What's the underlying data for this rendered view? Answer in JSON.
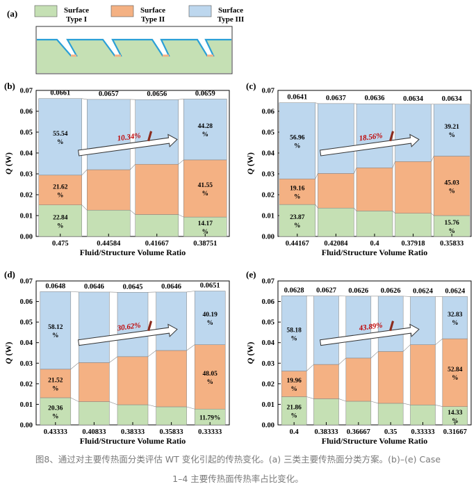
{
  "figure": {
    "legend": {
      "panel_letter": "(a)",
      "items": [
        {
          "label": "Surface\nType I",
          "color": "#c5e0b4"
        },
        {
          "label": "Surface\nType II",
          "color": "#f4b183"
        },
        {
          "label": "Surface\nType III",
          "color": "#bdd7ee"
        }
      ]
    },
    "caption_line1": "图8、通过对主要传热面分类评估 WT 变化引起的传热变化。(a) 三类主要传热面分类方案。(b)–(e) Case",
    "caption_line2": "1–4 主要传热面传热率占比变化。"
  },
  "colors": {
    "type1": "#c5e0b4",
    "type2": "#f4b183",
    "type3": "#bdd7ee",
    "fluid_channel": "#2a9fd6",
    "solid": "#c5e0b4",
    "arrow_label": "#c00000",
    "arrow_wedge": "#8b2b1d"
  },
  "chart_data": [
    {
      "panel": "(b)",
      "type": "bar",
      "stacked": true,
      "xlabel": "Fluid/Structure Volume Ratio",
      "ylabel": "Q (W)",
      "ylim": [
        0,
        0.07
      ],
      "yticks": [
        "0.00",
        "0.01",
        "0.02",
        "0.03",
        "0.04",
        "0.05",
        "0.06",
        "0.07"
      ],
      "categories": [
        "0.475",
        "0.44584",
        "0.41667",
        "0.38751"
      ],
      "totals": [
        "0.0661",
        "0.0657",
        "0.0656",
        "0.0659"
      ],
      "series": [
        {
          "name": "Surface Type I",
          "values": [
            0.0151,
            0.0126,
            0.0105,
            0.0093
          ]
        },
        {
          "name": "Surface Type II",
          "values": [
            0.0143,
            0.0194,
            0.0241,
            0.0274
          ]
        },
        {
          "name": "Surface Type III",
          "values": [
            0.0367,
            0.0337,
            0.031,
            0.0292
          ]
        }
      ],
      "segment_labels": [
        [
          [
            "22.84",
            "%"
          ],
          [
            "21.62",
            "%"
          ],
          [
            "55.54",
            "%"
          ]
        ],
        [
          null,
          null,
          null
        ],
        [
          null,
          null,
          null
        ],
        [
          [
            "14.17",
            "%"
          ],
          [
            "41.55",
            "%"
          ],
          [
            "44.28",
            "%"
          ]
        ]
      ],
      "annotation": "10.34%"
    },
    {
      "panel": "(c)",
      "type": "bar",
      "stacked": true,
      "xlabel": "Fluid/Structure Volume Ratio",
      "ylabel": "Q (W)",
      "ylim": [
        0,
        0.07
      ],
      "yticks": [
        "0.00",
        "0.01",
        "0.02",
        "0.03",
        "0.04",
        "0.05",
        "0.06",
        "0.07"
      ],
      "categories": [
        "0.44167",
        "0.42084",
        "0.4",
        "0.37918",
        "0.35833"
      ],
      "totals": [
        "0.0641",
        "0.0637",
        "0.0636",
        "0.0634",
        "0.0634"
      ],
      "series": [
        {
          "name": "Surface Type I",
          "values": [
            0.0153,
            0.0136,
            0.0122,
            0.0111,
            0.01
          ]
        },
        {
          "name": "Surface Type II",
          "values": [
            0.0123,
            0.0166,
            0.0207,
            0.0248,
            0.0285
          ]
        },
        {
          "name": "Surface Type III",
          "values": [
            0.0365,
            0.0335,
            0.0307,
            0.0275,
            0.0249
          ]
        }
      ],
      "segment_labels": [
        [
          [
            "23.87",
            "%"
          ],
          [
            "19.16",
            "%"
          ],
          [
            "56.96",
            "%"
          ]
        ],
        [
          null,
          null,
          null
        ],
        [
          null,
          null,
          null
        ],
        [
          null,
          null,
          null
        ],
        [
          [
            "15.76",
            "%"
          ],
          [
            "45.03",
            "%"
          ],
          [
            "39.21",
            "%"
          ]
        ]
      ],
      "annotation": "18.56%"
    },
    {
      "panel": "(d)",
      "type": "bar",
      "stacked": true,
      "xlabel": "Fluid/Structure Volume Ratio",
      "ylabel": "Q (W)",
      "ylim": [
        0,
        0.07
      ],
      "yticks": [
        "0.00",
        "0.01",
        "0.02",
        "0.03",
        "0.04",
        "0.05",
        "0.06",
        "0.07"
      ],
      "categories": [
        "0.43333",
        "0.40833",
        "0.38333",
        "0.35833",
        "0.33333"
      ],
      "totals": [
        "0.0648",
        "0.0646",
        "0.0645",
        "0.0646",
        "0.0651"
      ],
      "series": [
        {
          "name": "Surface Type I",
          "values": [
            0.0132,
            0.0113,
            0.0098,
            0.0088,
            0.0077
          ]
        },
        {
          "name": "Surface Type II",
          "values": [
            0.0139,
            0.019,
            0.0234,
            0.0274,
            0.0313
          ]
        },
        {
          "name": "Surface Type III",
          "values": [
            0.0377,
            0.0343,
            0.0313,
            0.0284,
            0.0261
          ]
        }
      ],
      "segment_labels": [
        [
          [
            "20.36",
            "%"
          ],
          [
            "21.52",
            "%"
          ],
          [
            "58.12",
            "%"
          ]
        ],
        [
          null,
          null,
          null
        ],
        [
          null,
          null,
          null
        ],
        [
          null,
          null,
          null
        ],
        [
          [
            "11.79%"
          ],
          [
            "48.05",
            "%"
          ],
          [
            "40.19",
            "%"
          ]
        ]
      ],
      "annotation": "30.62%"
    },
    {
      "panel": "(e)",
      "type": "bar",
      "stacked": true,
      "xlabel": "Fluid/Structure Volume Ratio",
      "ylabel": "Q (W)",
      "ylim": [
        0,
        0.07
      ],
      "yticks": [
        "0.00",
        "0.01",
        "0.02",
        "0.03",
        "0.04",
        "0.05",
        "0.06",
        "0.07"
      ],
      "categories": [
        "0.4",
        "0.38333",
        "0.36667",
        "0.35",
        "0.33333",
        "0.31667"
      ],
      "totals": [
        "0.0628",
        "0.0627",
        "0.0626",
        "0.0626",
        "0.0624",
        "0.0624"
      ],
      "series": [
        {
          "name": "Surface Type I",
          "values": [
            0.0137,
            0.0127,
            0.0115,
            0.0105,
            0.0097,
            0.0089
          ]
        },
        {
          "name": "Surface Type II",
          "values": [
            0.0125,
            0.0167,
            0.021,
            0.0252,
            0.0293,
            0.033
          ]
        },
        {
          "name": "Surface Type III",
          "values": [
            0.0366,
            0.0333,
            0.0301,
            0.0269,
            0.0234,
            0.0205
          ]
        }
      ],
      "segment_labels": [
        [
          [
            "21.86",
            "%"
          ],
          [
            "19.96",
            "%"
          ],
          [
            "58.18",
            "%"
          ]
        ],
        [
          null,
          null,
          null
        ],
        [
          null,
          null,
          null
        ],
        [
          null,
          null,
          null
        ],
        [
          null,
          null,
          null
        ],
        [
          [
            "14.33",
            "%"
          ],
          [
            "52.84",
            "%"
          ],
          [
            "32.83",
            "%"
          ]
        ]
      ],
      "annotation": "43.89%"
    }
  ]
}
